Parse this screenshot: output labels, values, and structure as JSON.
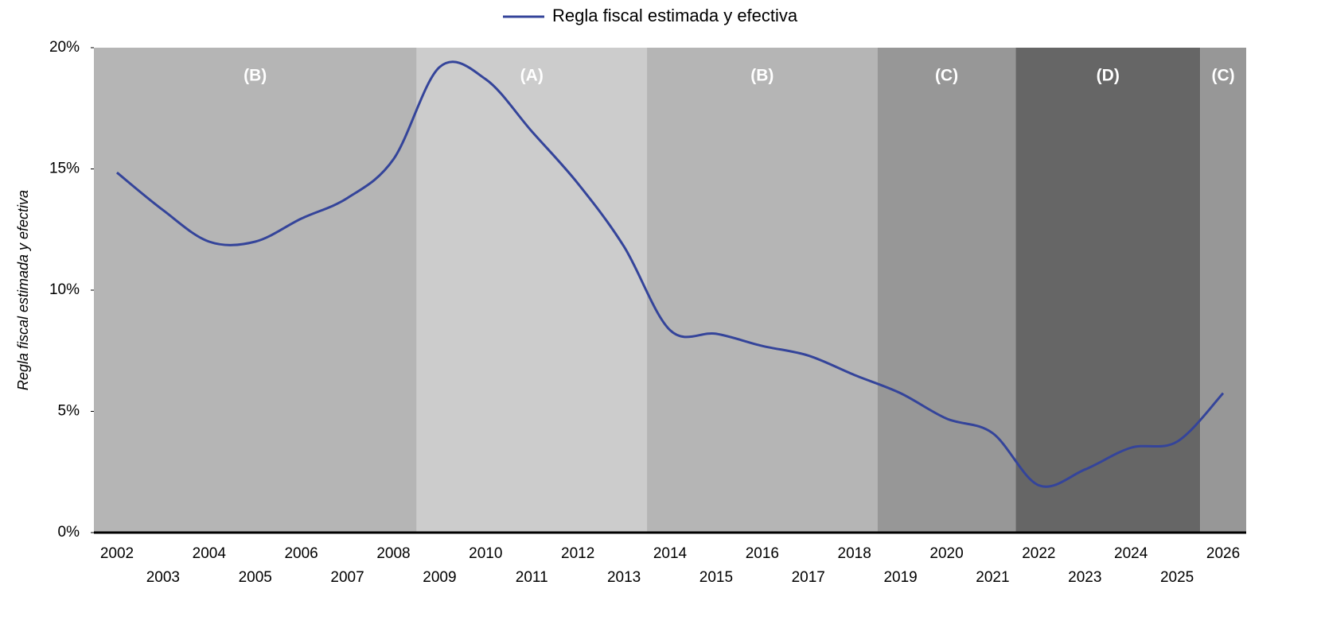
{
  "chart_data": {
    "type": "line",
    "y_axis_label": "Regla fiscal estimada y efectiva",
    "categories": [
      "2002",
      "2003",
      "2004",
      "2005",
      "2006",
      "2007",
      "2008",
      "2009",
      "2010",
      "2011",
      "2012",
      "2013",
      "2014",
      "2015",
      "2016",
      "2017",
      "2018",
      "2019",
      "2020",
      "2021",
      "2022",
      "2023",
      "2024",
      "2025",
      "2026"
    ],
    "series": [
      {
        "name": "Regla fiscal estimada y efectiva",
        "color": "#34449a",
        "values": [
          14.85,
          13.3,
          12.0,
          12.0,
          12.95,
          13.8,
          15.4,
          19.2,
          18.7,
          16.55,
          14.4,
          11.8,
          8.35,
          8.2,
          7.7,
          7.3,
          6.5,
          5.75,
          4.7,
          4.1,
          1.95,
          2.6,
          3.5,
          3.75,
          5.75
        ]
      }
    ],
    "regions": [
      {
        "label": "(B)",
        "start": "2002",
        "end": "2008",
        "color": "#b5b5b5"
      },
      {
        "label": "(A)",
        "start": "2009",
        "end": "2013",
        "color": "#cccccc"
      },
      {
        "label": "(B)",
        "start": "2014",
        "end": "2018",
        "color": "#b5b5b5"
      },
      {
        "label": "(C)",
        "start": "2019",
        "end": "2021",
        "color": "#979797"
      },
      {
        "label": "(D)",
        "start": "2022",
        "end": "2025",
        "color": "#666666"
      },
      {
        "label": "(C)",
        "start": "2026",
        "end": "2026",
        "color": "#979797"
      }
    ],
    "ylim": [
      0,
      20
    ],
    "yticks": [
      {
        "value": 0,
        "label": "0%"
      },
      {
        "value": 5,
        "label": "5%"
      },
      {
        "value": 10,
        "label": "10%"
      },
      {
        "value": 15,
        "label": "15%"
      },
      {
        "value": 20,
        "label": "20%"
      }
    ],
    "legend": "top"
  }
}
